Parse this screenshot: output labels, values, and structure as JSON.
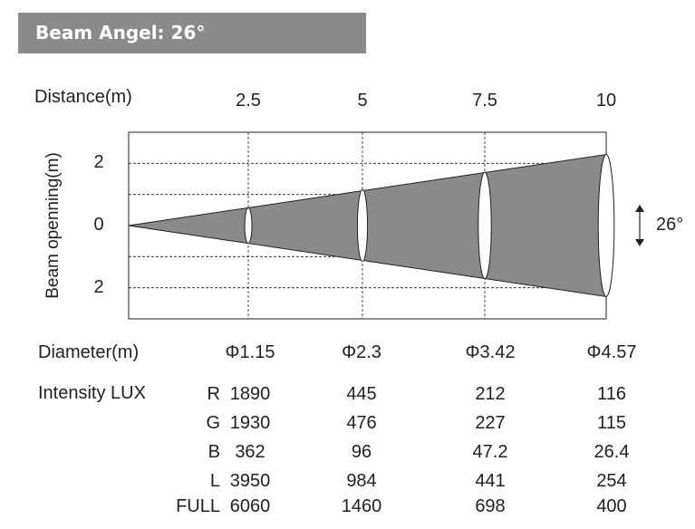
{
  "title": "Beam Angel: 26°",
  "chart_data": {
    "type": "area",
    "title": "Beam Angel: 26°",
    "xlabel": "Distance(m)",
    "ylabel": "Beam openning(m)",
    "x": [
      "2.5",
      "5",
      "7.5",
      "10"
    ],
    "x_values": [
      2.5,
      5,
      7.5,
      10
    ],
    "xlim": [
      0,
      10
    ],
    "y_ticks": [
      "2",
      "0",
      "2"
    ],
    "ylim": [
      -3,
      3
    ],
    "grid": true,
    "beam_angle_label": "26°",
    "series": [
      {
        "name": "Beam diameter (m)",
        "values": [
          1.15,
          2.3,
          3.42,
          4.57
        ]
      }
    ],
    "beam_color": "#8b8a8b"
  },
  "table": {
    "diameter_label": "Diameter(m)",
    "diameters": [
      "Φ1.15",
      "Φ2.3",
      "Φ3.42",
      "Φ4.57"
    ],
    "intensity_label": "Intensity LUX",
    "rows": [
      {
        "channel": "R",
        "values": [
          "1890",
          "445",
          "212",
          "116"
        ]
      },
      {
        "channel": "G",
        "values": [
          "1930",
          "476",
          "227",
          "115"
        ]
      },
      {
        "channel": "B",
        "values": [
          "362",
          "96",
          "47.2",
          "26.4"
        ]
      },
      {
        "channel": "L",
        "values": [
          "3950",
          "984",
          "441",
          "254"
        ]
      },
      {
        "channel": "FULL",
        "values": [
          "6060",
          "1460",
          "698",
          "400"
        ]
      }
    ]
  }
}
